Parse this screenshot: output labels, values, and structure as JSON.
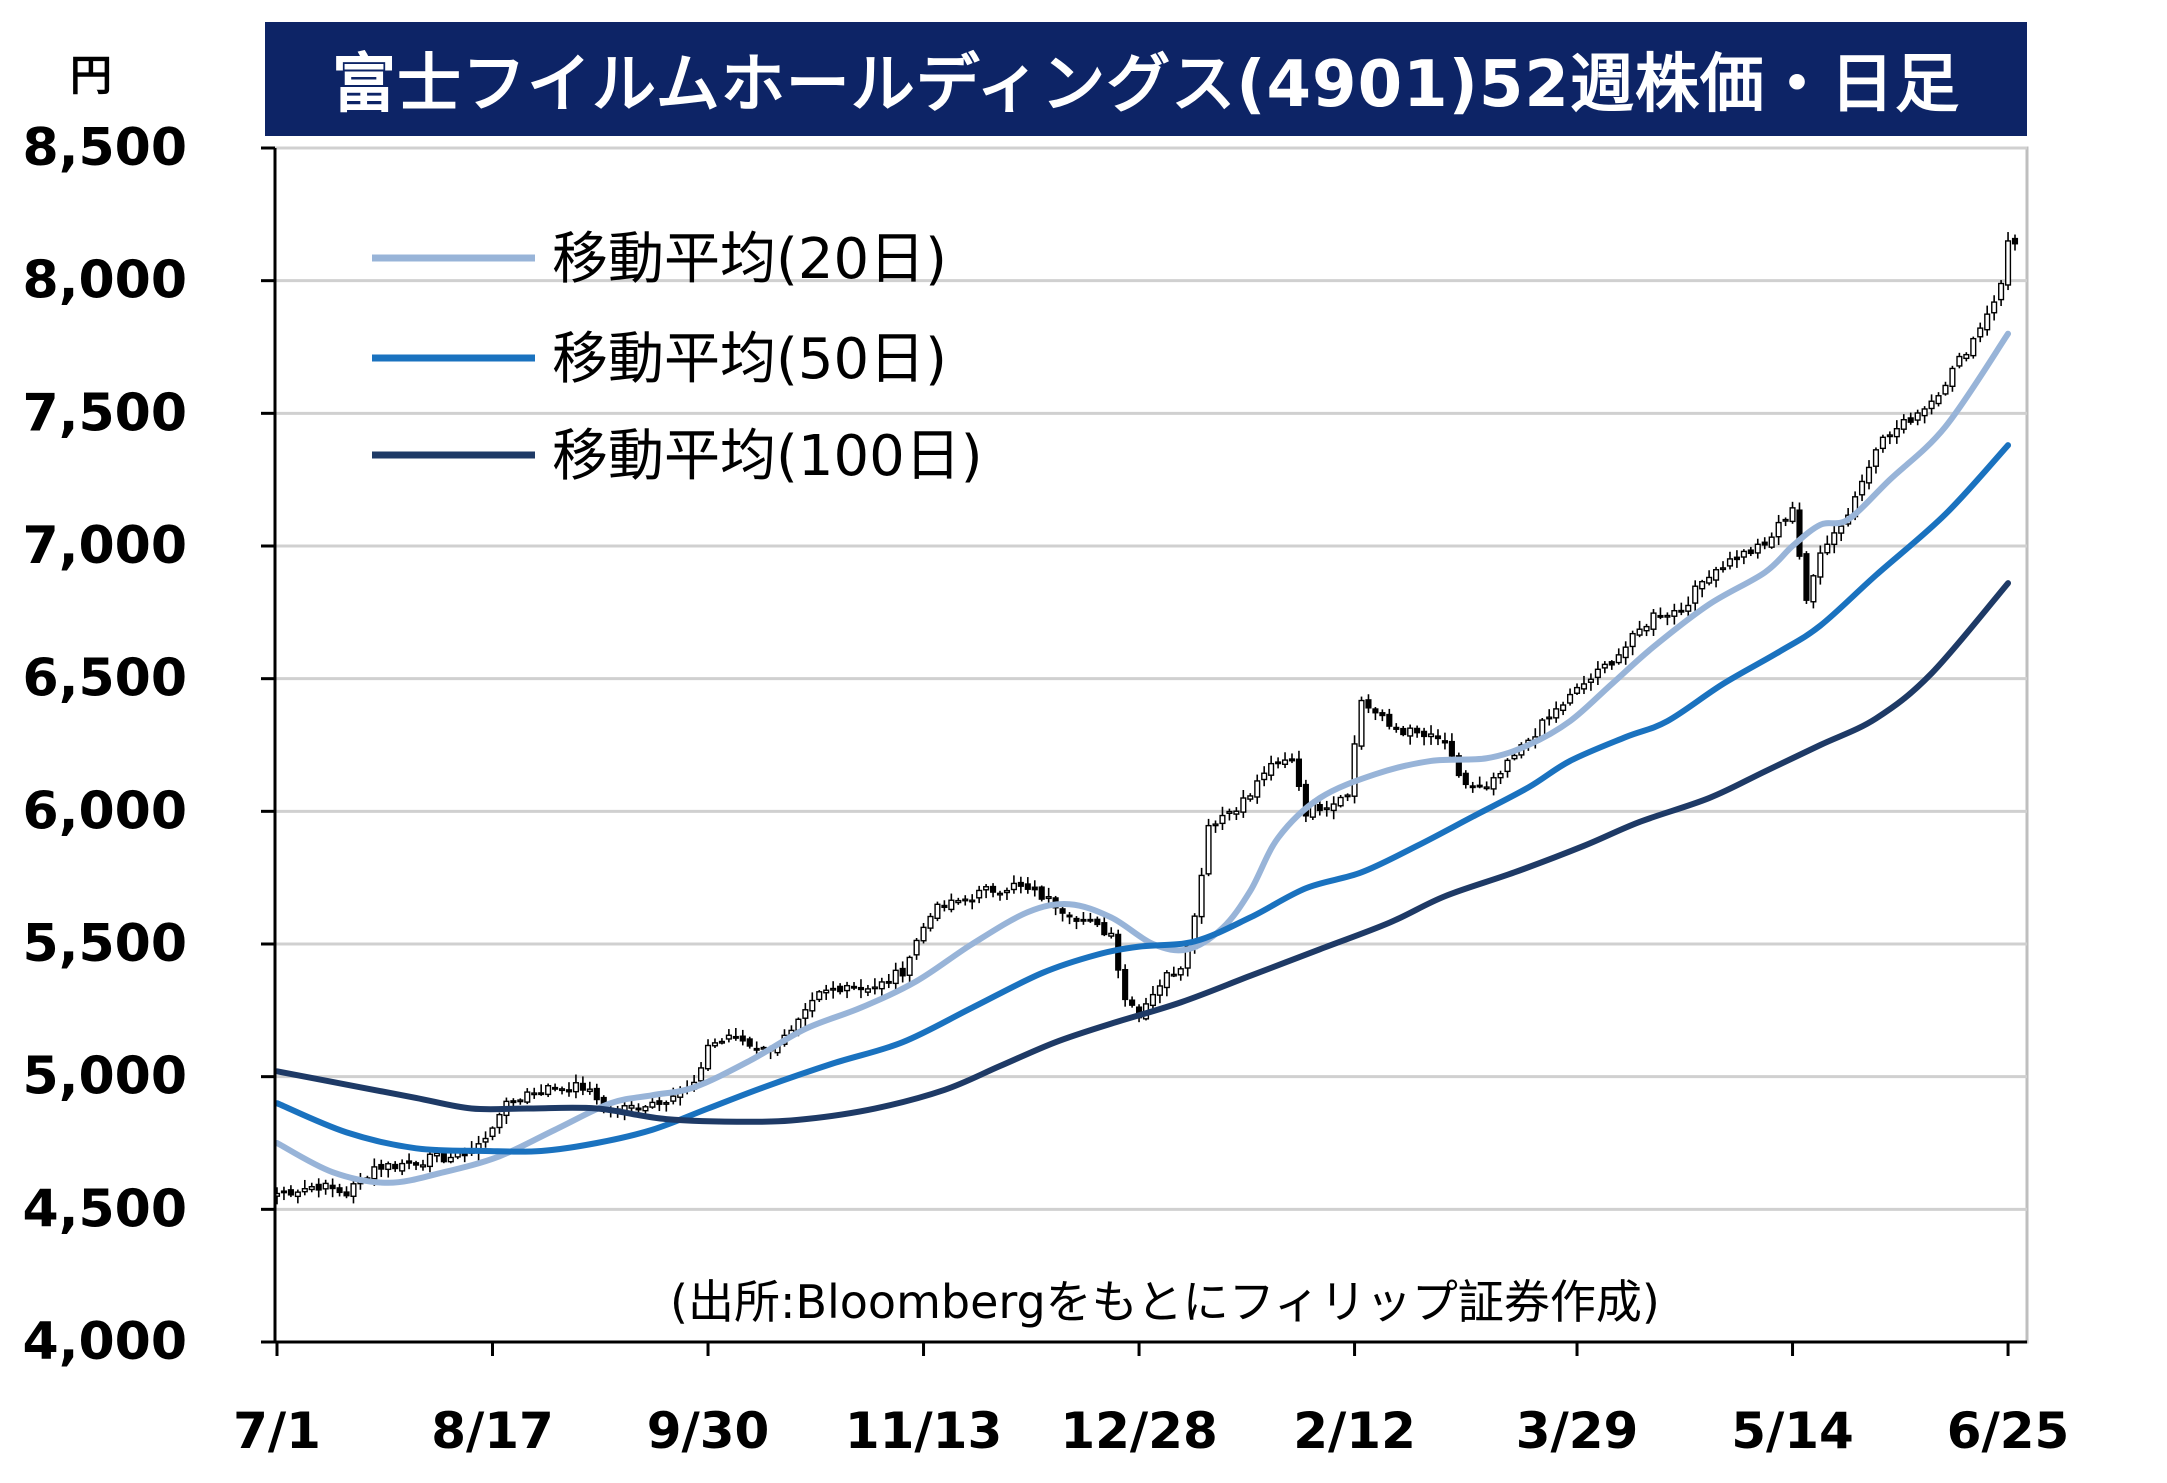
{
  "header": {
    "title": "富士フイルムホールディングス(4901)52週株価・日足"
  },
  "unit_label": "円",
  "source_note": "(出所:Bloombergをもとにフィリップ証券作成)",
  "chart_data": {
    "type": "candlestick",
    "title": "富士フイルムホールディングス(4901)52週株価・日足",
    "ylabel": "円",
    "xlabel": "",
    "ylim": [
      4000,
      8500
    ],
    "yticks": [
      4000,
      4500,
      5000,
      5500,
      6000,
      6500,
      7000,
      7500,
      8000,
      8500
    ],
    "ytick_labels": [
      "4,000",
      "4,500",
      "5,000",
      "5,500",
      "6,000",
      "6,500",
      "7,000",
      "7,500",
      "8,000",
      "8,500"
    ],
    "x_range": [
      0,
      250
    ],
    "xticks": [
      {
        "x": 0,
        "label": "7/1"
      },
      {
        "x": 31,
        "label": "8/17"
      },
      {
        "x": 62,
        "label": "9/30"
      },
      {
        "x": 93,
        "label": "11/13"
      },
      {
        "x": 124,
        "label": "12/28"
      },
      {
        "x": 155,
        "label": "2/12"
      },
      {
        "x": 187,
        "label": "3/29"
      },
      {
        "x": 218,
        "label": "5/14"
      },
      {
        "x": 249,
        "label": "6/25"
      }
    ],
    "grid": true,
    "legend_position": "top-left",
    "colors": {
      "title_bg": "#0d2466",
      "ma20": "#98b4d8",
      "ma50": "#1a72bf",
      "ma100": "#1e3a66",
      "grid": "#d0d0d0",
      "candle_up_fill": "#ffffff",
      "candle_down_fill": "#000000"
    },
    "series": [
      {
        "name": "移動平均(20日)",
        "key": "ma20",
        "points": [
          [
            0,
            4750
          ],
          [
            8,
            4640
          ],
          [
            16,
            4600
          ],
          [
            24,
            4640
          ],
          [
            32,
            4700
          ],
          [
            40,
            4800
          ],
          [
            48,
            4900
          ],
          [
            54,
            4930
          ],
          [
            60,
            4960
          ],
          [
            68,
            5060
          ],
          [
            76,
            5180
          ],
          [
            84,
            5260
          ],
          [
            92,
            5360
          ],
          [
            100,
            5500
          ],
          [
            108,
            5620
          ],
          [
            114,
            5650
          ],
          [
            120,
            5600
          ],
          [
            126,
            5500
          ],
          [
            131,
            5480
          ],
          [
            136,
            5560
          ],
          [
            140,
            5700
          ],
          [
            144,
            5900
          ],
          [
            150,
            6050
          ],
          [
            158,
            6140
          ],
          [
            166,
            6190
          ],
          [
            174,
            6200
          ],
          [
            180,
            6250
          ],
          [
            186,
            6340
          ],
          [
            192,
            6480
          ],
          [
            198,
            6620
          ],
          [
            206,
            6780
          ],
          [
            214,
            6900
          ],
          [
            218,
            7000
          ],
          [
            222,
            7080
          ],
          [
            226,
            7100
          ],
          [
            232,
            7250
          ],
          [
            240,
            7450
          ],
          [
            249,
            7800
          ]
        ]
      },
      {
        "name": "移動平均(50日)",
        "key": "ma50",
        "points": [
          [
            0,
            4900
          ],
          [
            10,
            4790
          ],
          [
            20,
            4730
          ],
          [
            30,
            4720
          ],
          [
            38,
            4720
          ],
          [
            46,
            4750
          ],
          [
            54,
            4800
          ],
          [
            62,
            4880
          ],
          [
            70,
            4960
          ],
          [
            80,
            5050
          ],
          [
            90,
            5130
          ],
          [
            100,
            5260
          ],
          [
            110,
            5390
          ],
          [
            118,
            5460
          ],
          [
            124,
            5490
          ],
          [
            132,
            5510
          ],
          [
            140,
            5600
          ],
          [
            148,
            5710
          ],
          [
            156,
            5770
          ],
          [
            164,
            5870
          ],
          [
            172,
            5980
          ],
          [
            180,
            6090
          ],
          [
            186,
            6190
          ],
          [
            194,
            6280
          ],
          [
            200,
            6340
          ],
          [
            208,
            6480
          ],
          [
            216,
            6600
          ],
          [
            222,
            6700
          ],
          [
            230,
            6890
          ],
          [
            240,
            7120
          ],
          [
            249,
            7380
          ]
        ]
      },
      {
        "name": "移動平均(100日)",
        "key": "ma100",
        "points": [
          [
            0,
            5020
          ],
          [
            12,
            4960
          ],
          [
            20,
            4920
          ],
          [
            28,
            4880
          ],
          [
            36,
            4880
          ],
          [
            46,
            4880
          ],
          [
            56,
            4840
          ],
          [
            68,
            4830
          ],
          [
            76,
            4840
          ],
          [
            86,
            4880
          ],
          [
            96,
            4950
          ],
          [
            104,
            5040
          ],
          [
            112,
            5130
          ],
          [
            120,
            5200
          ],
          [
            130,
            5280
          ],
          [
            140,
            5380
          ],
          [
            150,
            5480
          ],
          [
            160,
            5580
          ],
          [
            168,
            5680
          ],
          [
            178,
            5770
          ],
          [
            188,
            5870
          ],
          [
            196,
            5960
          ],
          [
            206,
            6050
          ],
          [
            214,
            6150
          ],
          [
            222,
            6250
          ],
          [
            230,
            6350
          ],
          [
            238,
            6520
          ],
          [
            249,
            6860
          ]
        ]
      }
    ],
    "price_path": [
      [
        0,
        4560
      ],
      [
        6,
        4590
      ],
      [
        10,
        4560
      ],
      [
        14,
        4660
      ],
      [
        18,
        4670
      ],
      [
        22,
        4690
      ],
      [
        26,
        4700
      ],
      [
        30,
        4760
      ],
      [
        32,
        4870
      ],
      [
        36,
        4940
      ],
      [
        40,
        4960
      ],
      [
        44,
        4960
      ],
      [
        48,
        4870
      ],
      [
        52,
        4890
      ],
      [
        56,
        4920
      ],
      [
        60,
        4960
      ],
      [
        62,
        5120
      ],
      [
        66,
        5150
      ],
      [
        70,
        5100
      ],
      [
        74,
        5160
      ],
      [
        78,
        5310
      ],
      [
        82,
        5350
      ],
      [
        86,
        5330
      ],
      [
        90,
        5400
      ],
      [
        94,
        5620
      ],
      [
        98,
        5660
      ],
      [
        102,
        5700
      ],
      [
        106,
        5720
      ],
      [
        110,
        5680
      ],
      [
        114,
        5620
      ],
      [
        118,
        5560
      ],
      [
        120,
        5540
      ],
      [
        122,
        5300
      ],
      [
        124,
        5240
      ],
      [
        126,
        5320
      ],
      [
        128,
        5380
      ],
      [
        130,
        5420
      ],
      [
        132,
        5600
      ],
      [
        134,
        5950
      ],
      [
        138,
        6020
      ],
      [
        140,
        6060
      ],
      [
        142,
        6150
      ],
      [
        146,
        6200
      ],
      [
        148,
        6000
      ],
      [
        150,
        6020
      ],
      [
        152,
        6040
      ],
      [
        154,
        6080
      ],
      [
        156,
        6420
      ],
      [
        160,
        6320
      ],
      [
        164,
        6290
      ],
      [
        168,
        6260
      ],
      [
        170,
        6120
      ],
      [
        172,
        6090
      ],
      [
        174,
        6080
      ],
      [
        176,
        6140
      ],
      [
        180,
        6270
      ],
      [
        184,
        6380
      ],
      [
        188,
        6480
      ],
      [
        190,
        6520
      ],
      [
        194,
        6620
      ],
      [
        198,
        6740
      ],
      [
        202,
        6760
      ],
      [
        206,
        6900
      ],
      [
        210,
        6960
      ],
      [
        214,
        7000
      ],
      [
        218,
        7150
      ],
      [
        220,
        6780
      ],
      [
        222,
        6990
      ],
      [
        224,
        7050
      ],
      [
        226,
        7120
      ],
      [
        230,
        7380
      ],
      [
        234,
        7460
      ],
      [
        238,
        7550
      ],
      [
        240,
        7620
      ],
      [
        244,
        7780
      ],
      [
        248,
        7980
      ],
      [
        249,
        8150
      ]
    ],
    "legend": [
      {
        "label": "移動平均(20日)",
        "key": "ma20"
      },
      {
        "label": "移動平均(50日)",
        "key": "ma50"
      },
      {
        "label": "移動平均(100日)",
        "key": "ma100"
      }
    ]
  }
}
